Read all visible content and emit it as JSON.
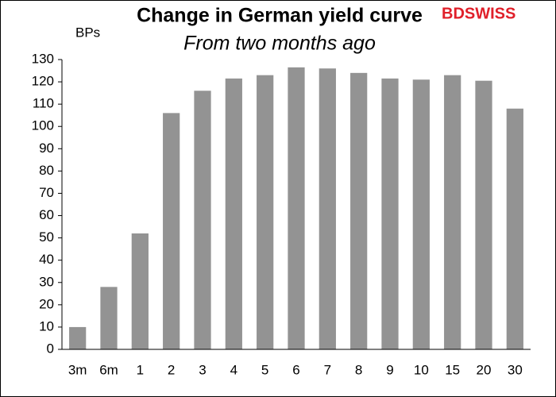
{
  "chart_data": {
    "type": "bar",
    "title": "Change in German yield curve",
    "subtitle": "From two months ago",
    "y_label": "BPs",
    "brand": "BDSWISS",
    "categories": [
      "3m",
      "6m",
      "1",
      "2",
      "3",
      "4",
      "5",
      "6",
      "7",
      "8",
      "9",
      "10",
      "15",
      "20",
      "30"
    ],
    "values": [
      10,
      28,
      52,
      106,
      116,
      121.5,
      123,
      126.5,
      126,
      124,
      121.5,
      121,
      123,
      120.5,
      108
    ],
    "color": "#939393",
    "ylim": [
      0,
      130
    ],
    "yticks": [
      0,
      10,
      20,
      30,
      40,
      50,
      60,
      70,
      80,
      90,
      100,
      110,
      120,
      130
    ],
    "grid": false
  }
}
